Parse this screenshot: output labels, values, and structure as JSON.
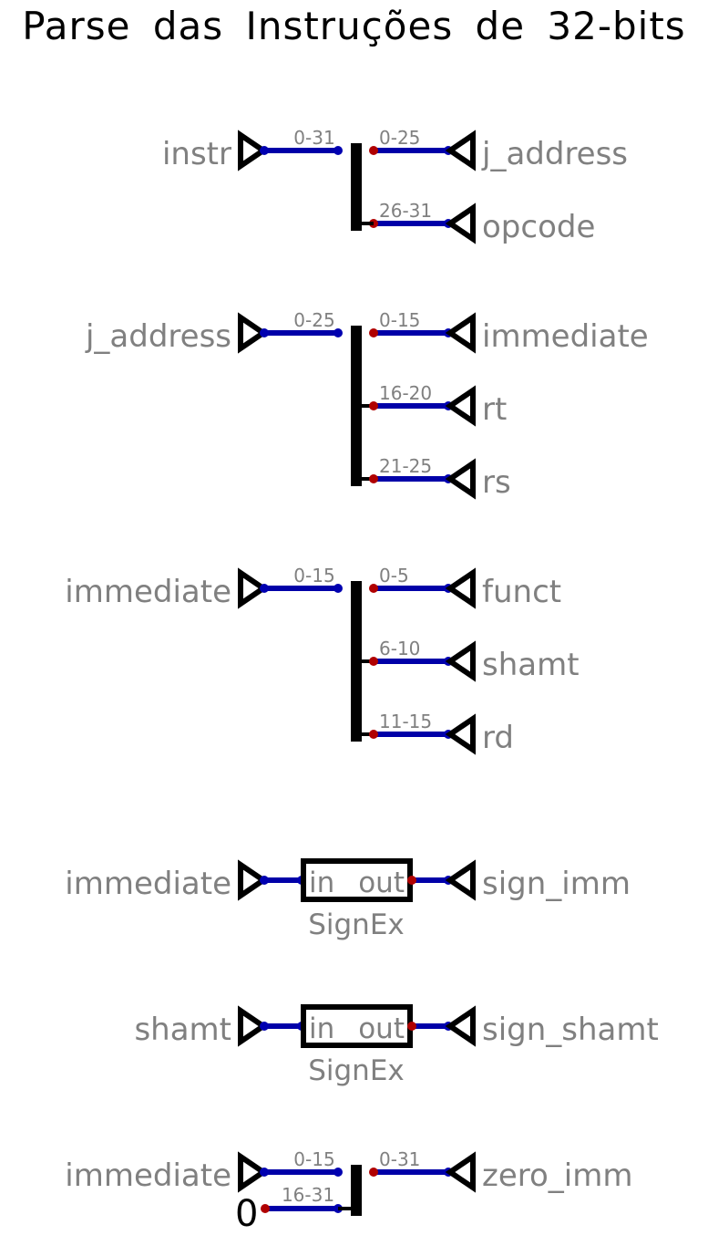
{
  "title": "Parse das Instruções de 32-bits",
  "colors": {
    "wire": "#0000a8",
    "dot_out": "#0000b0",
    "dot_in": "#b00000",
    "block": "#000000",
    "label": "#808080"
  },
  "splitters": [
    {
      "input": {
        "label": "instr",
        "range": "0-31"
      },
      "outputs": [
        {
          "range": "0-25",
          "label": "j_address"
        },
        {
          "range": "26-31",
          "label": "opcode"
        }
      ]
    },
    {
      "input": {
        "label": "j_address",
        "range": "0-25"
      },
      "outputs": [
        {
          "range": "0-15",
          "label": "immediate"
        },
        {
          "range": "16-20",
          "label": "rt"
        },
        {
          "range": "21-25",
          "label": "rs"
        }
      ]
    },
    {
      "input": {
        "label": "immediate",
        "range": "0-15"
      },
      "outputs": [
        {
          "range": "0-5",
          "label": "funct"
        },
        {
          "range": "6-10",
          "label": "shamt"
        },
        {
          "range": "11-15",
          "label": "rd"
        }
      ]
    }
  ],
  "signext": [
    {
      "input": "immediate",
      "pin_in": "in",
      "pin_out": "out",
      "name": "SignEx",
      "output": "sign_imm"
    },
    {
      "input": "shamt",
      "pin_in": "in",
      "pin_out": "out",
      "name": "SignEx",
      "output": "sign_shamt"
    }
  ],
  "merger": {
    "input": {
      "label": "immediate",
      "range": "0-15"
    },
    "constant": {
      "value": "0",
      "range": "16-31"
    },
    "output": {
      "range": "0-31",
      "label": "zero_imm"
    }
  }
}
